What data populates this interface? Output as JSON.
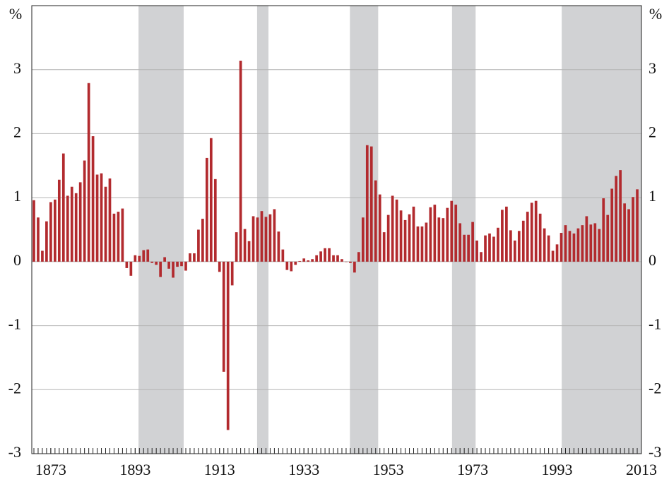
{
  "chart_data": {
    "type": "bar",
    "ylabel": "%",
    "y2label": "%",
    "x": [
      1869,
      1870,
      1871,
      1872,
      1873,
      1874,
      1875,
      1876,
      1877,
      1878,
      1879,
      1880,
      1881,
      1882,
      1883,
      1884,
      1885,
      1886,
      1887,
      1888,
      1889,
      1890,
      1891,
      1892,
      1893,
      1894,
      1895,
      1896,
      1897,
      1898,
      1899,
      1900,
      1901,
      1902,
      1903,
      1904,
      1905,
      1906,
      1907,
      1908,
      1909,
      1910,
      1911,
      1912,
      1913,
      1914,
      1915,
      1916,
      1917,
      1918,
      1919,
      1920,
      1921,
      1922,
      1923,
      1924,
      1925,
      1926,
      1927,
      1928,
      1929,
      1930,
      1931,
      1932,
      1933,
      1934,
      1935,
      1936,
      1937,
      1938,
      1939,
      1940,
      1941,
      1942,
      1943,
      1944,
      1945,
      1946,
      1947,
      1948,
      1949,
      1950,
      1951,
      1952,
      1953,
      1954,
      1955,
      1956,
      1957,
      1958,
      1959,
      1960,
      1961,
      1962,
      1963,
      1964,
      1965,
      1966,
      1967,
      1968,
      1969,
      1970,
      1971,
      1972,
      1973,
      1974,
      1975,
      1976,
      1977,
      1978,
      1979,
      1980,
      1981,
      1982,
      1983,
      1984,
      1985,
      1986,
      1987,
      1988,
      1989,
      1990,
      1991,
      1992,
      1993,
      1994,
      1995,
      1996,
      1997,
      1998,
      1999,
      2000,
      2001,
      2002,
      2003,
      2004,
      2005,
      2006,
      2007,
      2008,
      2009,
      2010,
      2011,
      2012
    ],
    "values": [
      0.96,
      0.69,
      0.17,
      0.63,
      0.93,
      0.97,
      1.28,
      1.69,
      1.03,
      1.17,
      1.07,
      1.24,
      1.58,
      2.79,
      1.96,
      1.36,
      1.38,
      1.17,
      1.3,
      0.75,
      0.78,
      0.83,
      -0.1,
      -0.22,
      0.1,
      0.09,
      0.18,
      0.19,
      -0.02,
      -0.05,
      -0.24,
      0.07,
      -0.11,
      -0.25,
      -0.08,
      -0.07,
      -0.14,
      0.13,
      0.13,
      0.5,
      0.67,
      1.62,
      1.93,
      1.29,
      -0.16,
      -1.72,
      -2.63,
      -0.37,
      0.46,
      3.14,
      0.51,
      0.32,
      0.71,
      0.69,
      0.79,
      0.7,
      0.74,
      0.82,
      0.47,
      0.19,
      -0.13,
      -0.15,
      -0.05,
      0.01,
      0.05,
      0.02,
      0.04,
      0.1,
      0.16,
      0.21,
      0.21,
      0.1,
      0.1,
      0.04,
      0.0,
      -0.02,
      -0.17,
      0.15,
      0.69,
      1.82,
      1.8,
      1.27,
      1.05,
      0.46,
      0.73,
      1.03,
      0.97,
      0.8,
      0.65,
      0.74,
      0.86,
      0.55,
      0.55,
      0.61,
      0.85,
      0.89,
      0.69,
      0.68,
      0.84,
      0.95,
      0.89,
      0.6,
      0.42,
      0.42,
      0.62,
      0.33,
      0.15,
      0.41,
      0.44,
      0.39,
      0.53,
      0.81,
      0.86,
      0.49,
      0.33,
      0.48,
      0.64,
      0.78,
      0.92,
      0.95,
      0.75,
      0.52,
      0.41,
      0.17,
      0.27,
      0.45,
      0.57,
      0.48,
      0.44,
      0.52,
      0.57,
      0.71,
      0.58,
      0.6,
      0.51,
      0.99,
      0.73,
      1.14,
      1.34,
      1.43,
      0.91,
      0.82,
      1.01,
      1.13
    ],
    "color": "#b22a2e",
    "shaded_periods": [
      [
        1893.8,
        1904.5
      ],
      [
        1921.9,
        1924.6
      ],
      [
        1943.9,
        1950.6
      ],
      [
        1968.1,
        1973.7
      ],
      [
        1994.1,
        2013
      ]
    ],
    "shade_color": "#d1d2d4",
    "xlim": [
      1868.5,
      2013
    ],
    "xticks": [
      1873,
      1893,
      1913,
      1933,
      1953,
      1973,
      1993,
      2013
    ],
    "ylim": [
      -3,
      4
    ],
    "yticks": [
      -3,
      -2,
      -1,
      0,
      1,
      2,
      3
    ],
    "y2lim": [
      -3,
      4
    ],
    "y2ticks": [
      -3,
      -2,
      -1,
      0,
      1,
      2,
      3
    ],
    "grid": true
  }
}
